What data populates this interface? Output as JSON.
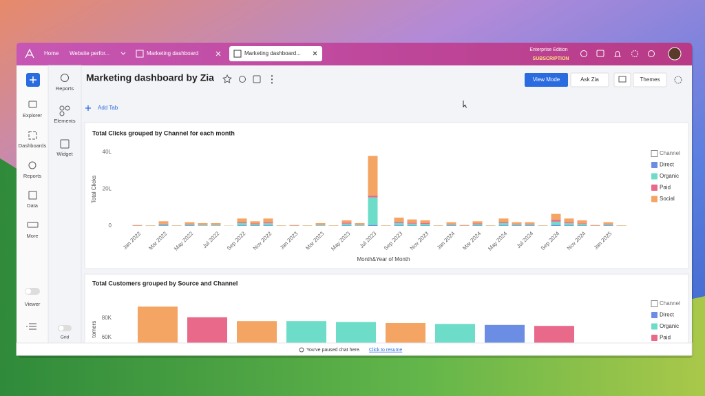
{
  "tabs": {
    "home": "Home",
    "items": [
      "Website perfor...",
      "Marketing dashboard",
      "Marketing dashboard..."
    ]
  },
  "header": {
    "edition": "Enterprise Edition",
    "subscription": "SUBSCRIPTION"
  },
  "sidebar": [
    "Explorer",
    "Dashboards",
    "Reports",
    "Data",
    "More",
    "Viewer"
  ],
  "panel": [
    "Reports",
    "Elements",
    "Widget",
    "Grid"
  ],
  "toolbar": {
    "title": "Marketing dashboard by Zia",
    "view_mode": "View Mode",
    "ask_zia": "Ask Zia",
    "themes": "Themes",
    "add_tab": "Add Tab"
  },
  "chart_data": [
    {
      "type": "bar",
      "stacked": true,
      "title": "Total Clicks grouped by Channel for each month",
      "x_label": "Month&Year of Month",
      "y_label": "Total Clicks",
      "legend_title": "Channel",
      "categories": [
        "Jan 2022",
        null,
        "Mar 2022",
        null,
        "May 2022",
        null,
        "Jul 2022",
        null,
        "Sep 2022",
        null,
        "Nov 2022",
        null,
        "Jan 2023",
        null,
        "Mar 2023",
        null,
        "May 2023",
        null,
        "Jul 2023",
        null,
        "Sep 2023",
        null,
        "Nov 2023",
        null,
        "Jan 2024",
        null,
        "Mar 2024",
        null,
        "May 2024",
        null,
        "Jul 2024",
        null,
        "Sep 2024",
        null,
        "Nov 2024",
        null,
        "Jan 2025",
        null
      ],
      "series": [
        {
          "name": "Direct",
          "color": "#6b8de3",
          "values": [
            0,
            0,
            0.2,
            0,
            0.2,
            0.1,
            0.1,
            0,
            0.3,
            0.2,
            0.3,
            0,
            0,
            0,
            0.1,
            0,
            0.3,
            0.1,
            0.5,
            0,
            0.3,
            0.2,
            0.2,
            0,
            0.2,
            0,
            0.2,
            0,
            0.3,
            0.2,
            0.2,
            0,
            0.5,
            0.3,
            0.2,
            0,
            0.2,
            0
          ]
        },
        {
          "name": "Organic",
          "color": "#6ddcc8",
          "values": [
            0.1,
            0.1,
            0.6,
            0.1,
            0.5,
            0.4,
            0.4,
            0.1,
            1.2,
            0.7,
            1.1,
            0.1,
            0.1,
            0.1,
            0.4,
            0.1,
            0.9,
            0.4,
            15,
            0.1,
            1.3,
            1,
            0.9,
            0.1,
            0.5,
            0.1,
            0.7,
            0.1,
            1.2,
            0.5,
            0.5,
            0.1,
            1.8,
            1.1,
            0.8,
            0.1,
            0.5,
            0.1
          ]
        },
        {
          "name": "Paid",
          "color": "#e8698a",
          "values": [
            0.1,
            0,
            0.4,
            0,
            0.3,
            0.2,
            0.2,
            0,
            0.6,
            0.4,
            0.6,
            0,
            0.1,
            0,
            0.2,
            0,
            0.5,
            0.2,
            1,
            0,
            0.7,
            0.5,
            0.4,
            0,
            0.3,
            0.1,
            0.4,
            0,
            0.6,
            0.3,
            0.3,
            0,
            1,
            0.6,
            0.4,
            0.1,
            0.3,
            0
          ]
        },
        {
          "name": "Social",
          "color": "#f4a463",
          "values": [
            0.3,
            0.2,
            1.3,
            0.2,
            1,
            0.8,
            0.8,
            0.1,
            1.9,
            1.2,
            2,
            0.2,
            0.3,
            0.2,
            0.8,
            0.2,
            1.3,
            0.8,
            21.5,
            0.2,
            2.2,
            1.8,
            1.5,
            0.2,
            1,
            0.3,
            1.2,
            0.2,
            1.9,
            1,
            1,
            0.2,
            3.2,
            2,
            1.6,
            0.3,
            1,
            0.2
          ]
        }
      ],
      "ylim": [
        0,
        40
      ],
      "yticks": [
        0,
        {
          "value": 20,
          "label": "20L"
        },
        {
          "value": 40,
          "label": "40L"
        }
      ],
      "grid": false
    },
    {
      "type": "bar",
      "stacked": true,
      "title": "Total Customers grouped by Source and Channel",
      "y_label": "tomers",
      "legend_title": "Channel",
      "categories": [
        null,
        null,
        null,
        null,
        null,
        null,
        null,
        null,
        null
      ],
      "series": [
        {
          "name": "Direct",
          "color": "#6b8de3",
          "values": [
            null,
            null,
            null,
            null,
            null,
            null,
            null,
            73000,
            null
          ]
        },
        {
          "name": "Organic",
          "color": "#6ddcc8",
          "values": [
            null,
            null,
            null,
            77000,
            76000,
            null,
            74000,
            null,
            null
          ]
        },
        {
          "name": "Paid",
          "color": "#e8698a",
          "values": [
            null,
            81000,
            null,
            null,
            null,
            null,
            null,
            null,
            72000
          ]
        },
        {
          "color": "#f4a463",
          "values": [
            92000,
            null,
            77000,
            null,
            null,
            75000,
            null,
            null,
            null
          ]
        }
      ],
      "ylim": [
        0,
        100000
      ],
      "yticks": [
        {
          "value": 60000,
          "label": "60K"
        },
        {
          "value": 80000,
          "label": "80K"
        }
      ],
      "grid": false
    }
  ],
  "footer": {
    "message": "You've paused chat here.",
    "link": "Click to resume"
  }
}
